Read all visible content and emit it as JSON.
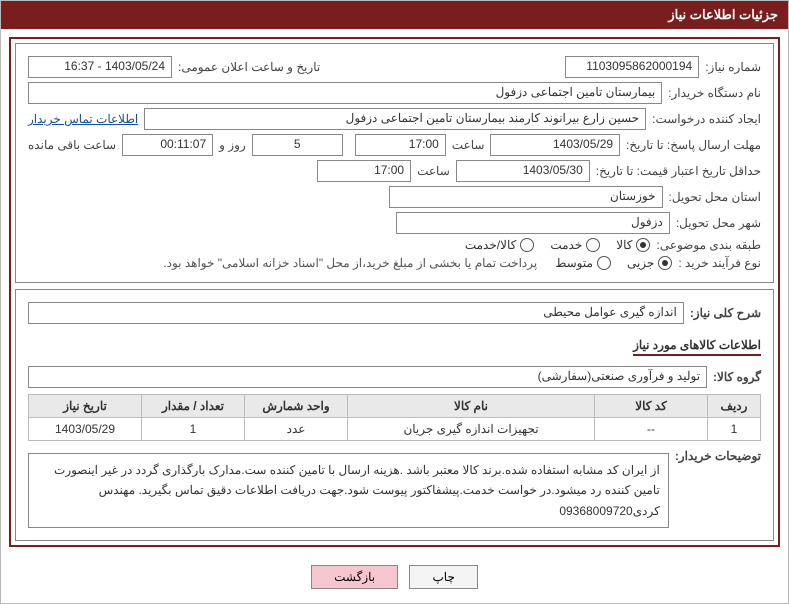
{
  "title": "جزئیات اطلاعات نیاز",
  "labels": {
    "need_no": "شماره نیاز:",
    "announce_dt": "تاریخ و ساعت اعلان عمومی:",
    "buyer_org": "نام دستگاه خریدار:",
    "requester": "ایجاد کننده درخواست:",
    "buyer_contact": "اطلاعات تماس خریدار",
    "response_deadline": "مهلت ارسال پاسخ: تا تاریخ:",
    "saat": "ساعت",
    "rooz_va": "روز و",
    "remain": "ساعت باقی مانده",
    "min_price_valid": "حداقل تاریخ اعتبار قیمت: تا تاریخ:",
    "delivery_province": "استان محل تحویل:",
    "delivery_city": "شهر محل تحویل:",
    "classification": "طبقه بندی موضوعی:",
    "class_kala": "کالا",
    "class_khedmat": "خدمت",
    "class_both": "کالا/خدمت",
    "purchase_type": "نوع فرآیند خرید :",
    "pt_partial": "جزیی",
    "pt_medium": "متوسط",
    "note": "پرداخت تمام یا بخشی از مبلغ خرید،از محل \"اسناد خزانه اسلامی\" خواهد بود.",
    "summary_label": "شرح کلی نیاز:",
    "goods_section": "اطلاعات کالاهای مورد نیاز",
    "goods_group": "گروه کالا:",
    "th_row": "ردیف",
    "th_code": "کد کالا",
    "th_name": "نام کالا",
    "th_unit": "واحد شمارش",
    "th_qty": "تعداد / مقدار",
    "th_date": "تاریخ نیاز",
    "buyer_notes": "توضیحات خریدار:",
    "btn_print": "چاپ",
    "btn_back": "بازگشت"
  },
  "values": {
    "need_no": "1103095862000194",
    "announce_dt": "1403/05/24 - 16:37",
    "buyer_org": "بیمارستان تامین اجتماعی دزفول",
    "requester": "حسین زارع بیرانوند کارمند بیمارستان تامین اجتماعی دزفول",
    "resp_date": "1403/05/29",
    "resp_time": "17:00",
    "days": "5",
    "remain_hms": "00:11:07",
    "min_date": "1403/05/30",
    "min_time": "17:00",
    "province": "خوزستان",
    "city": "دزفول",
    "summary": "اندازه گیری عوامل محیطی",
    "goods_group": "تولید و فرآوری صنعتی(سفارشی)",
    "buyer_notes": "از ایران کد مشابه استفاده شده.برند کالا معتبر باشد .هزینه ارسال با تامین کننده ست.مدارک بارگذاری گردد در غیر اینصورت تامین کننده رد میشود.در خواست خدمت.پیشفاکتور پیوست شود.جهت دریافت اطلاعات دقیق تماس بگیرید. مهندس کردی09368009720"
  },
  "radios": {
    "class": "kala",
    "purchase": "partial"
  },
  "items": [
    {
      "idx": "1",
      "code": "--",
      "name": "تجهیزات اندازه گیری جریان",
      "unit": "عدد",
      "qty": "1",
      "date": "1403/05/29"
    }
  ],
  "style": {
    "primary": "#7a1d1d",
    "border": "#888888",
    "th_bg": "#e9e9e9",
    "link": "#1a4fa0",
    "btn_back_bg": "#f6c6d0"
  }
}
